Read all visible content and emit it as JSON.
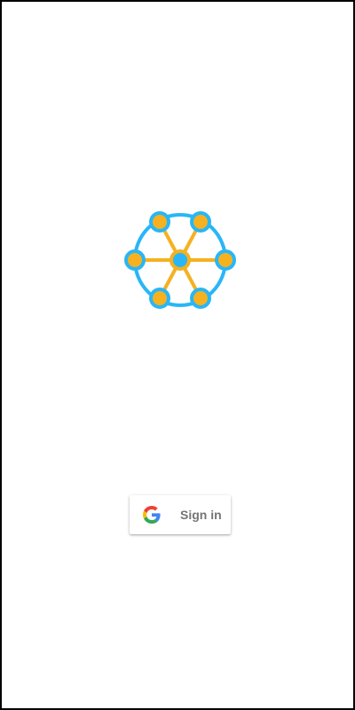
{
  "app": {
    "logo_icon": "network-hub-icon",
    "colors": {
      "ring": "#29b6f6",
      "node": "#f5b120",
      "spoke": "#f5b120",
      "center": "#29b6f6"
    }
  },
  "signin": {
    "label": "Sign in",
    "icon": "google-g-icon",
    "colors": {
      "blue": "#4285F4",
      "red": "#EA4335",
      "yellow": "#FBBC05",
      "green": "#34A853",
      "text": "#757575"
    }
  }
}
